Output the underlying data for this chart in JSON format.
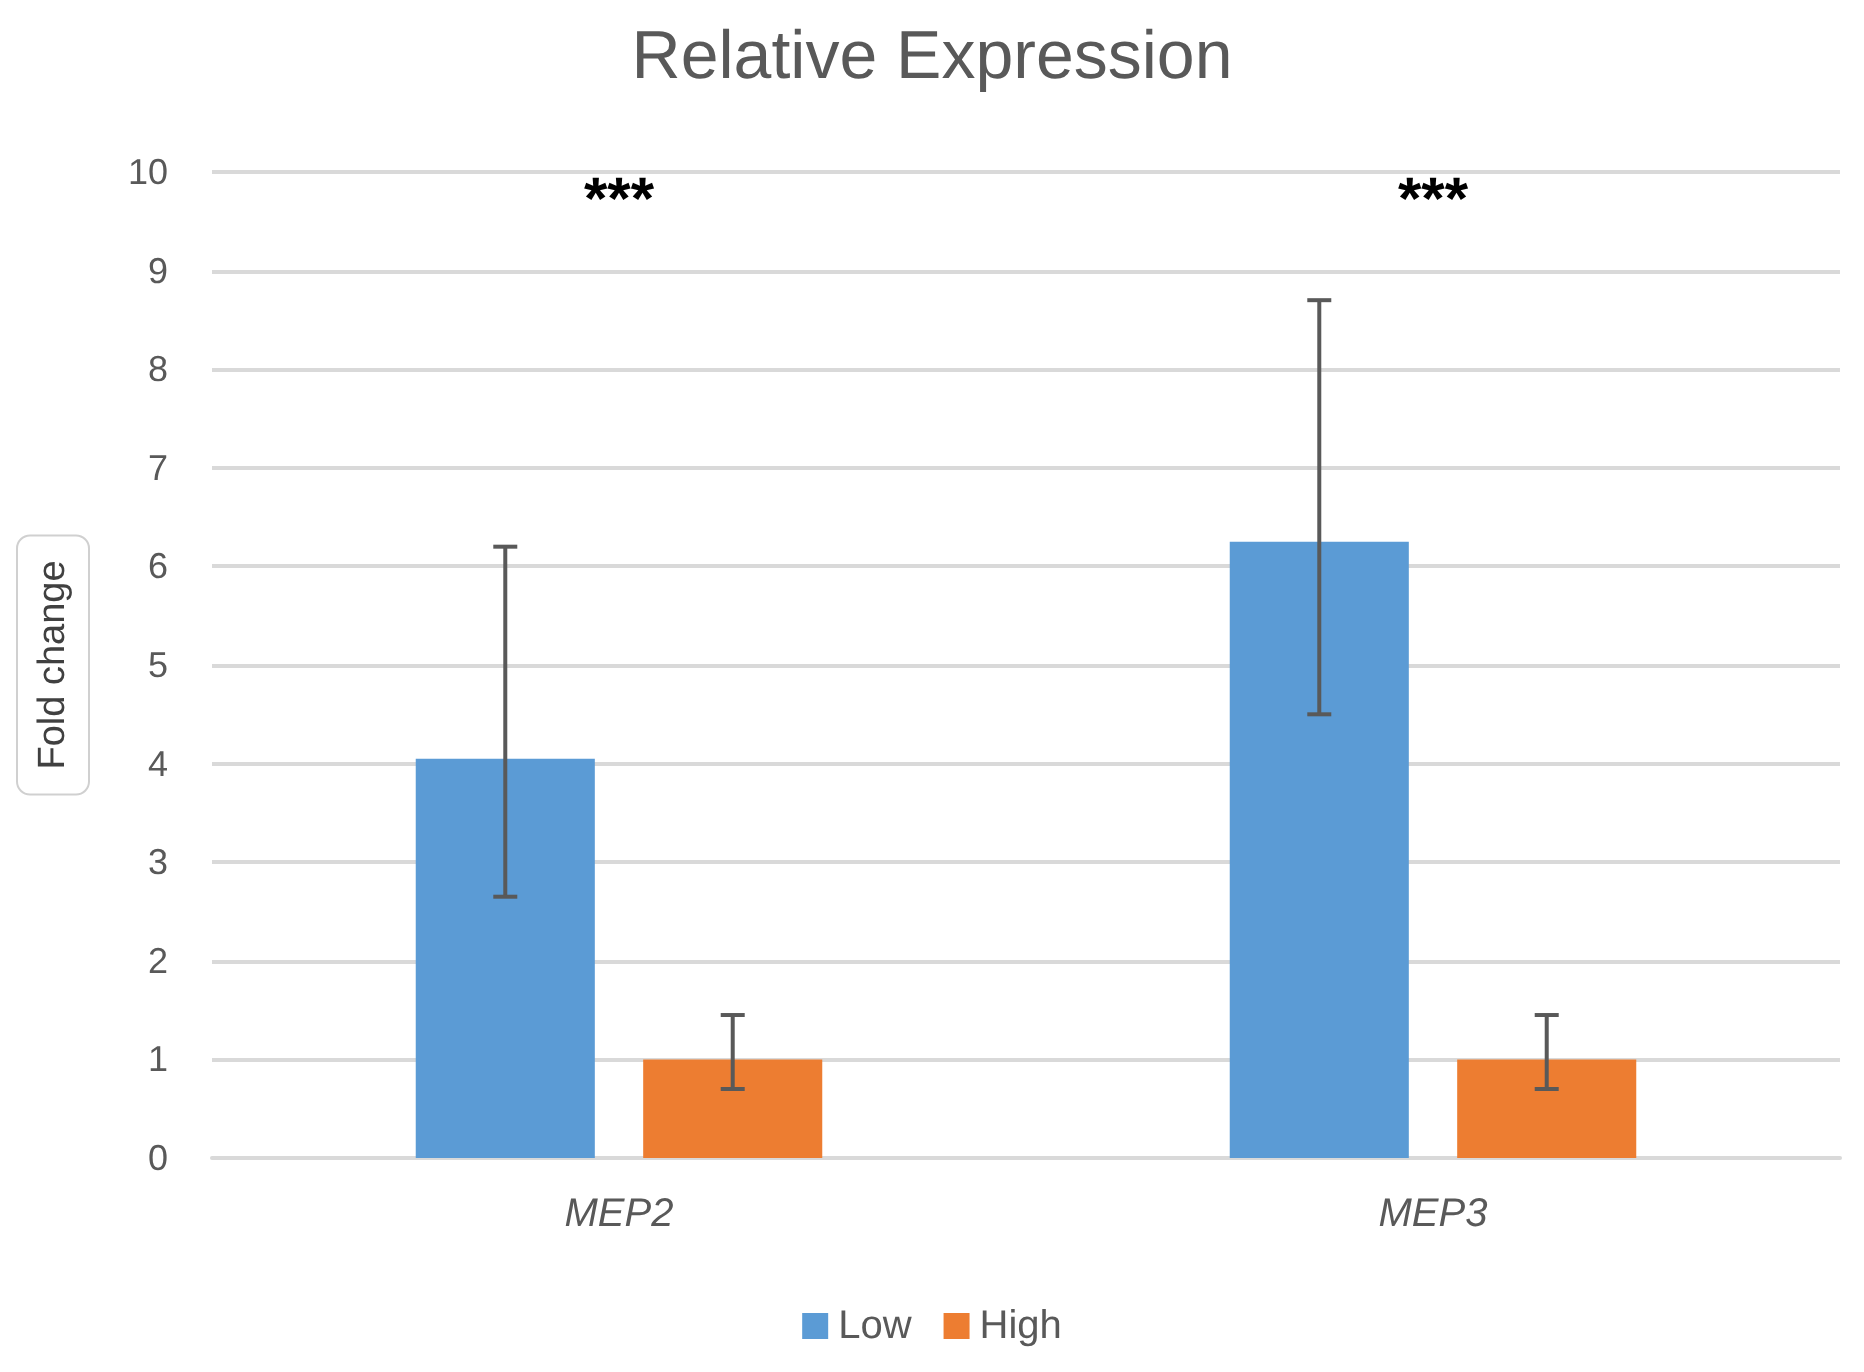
{
  "chart_data": {
    "type": "bar",
    "title": "Relative Expression",
    "ylabel": "Fold change",
    "categories": [
      "MEP2",
      "MEP3"
    ],
    "series": [
      {
        "name": "Low",
        "color": "#5b9bd5",
        "values": [
          4.05,
          6.25
        ],
        "errors": [
          [
            2.65,
            6.2
          ],
          [
            4.5,
            8.7
          ]
        ]
      },
      {
        "name": "High",
        "color": "#ed7d31",
        "values": [
          1.0,
          1.0
        ],
        "errors": [
          [
            0.7,
            1.45
          ],
          [
            0.7,
            1.45
          ]
        ]
      }
    ],
    "ylim": [
      0,
      10
    ],
    "yticks": [
      0,
      1,
      2,
      3,
      4,
      5,
      6,
      7,
      8,
      9,
      10
    ],
    "grid": "y",
    "legend": "bottom",
    "annotations": [
      "***",
      "***"
    ]
  }
}
